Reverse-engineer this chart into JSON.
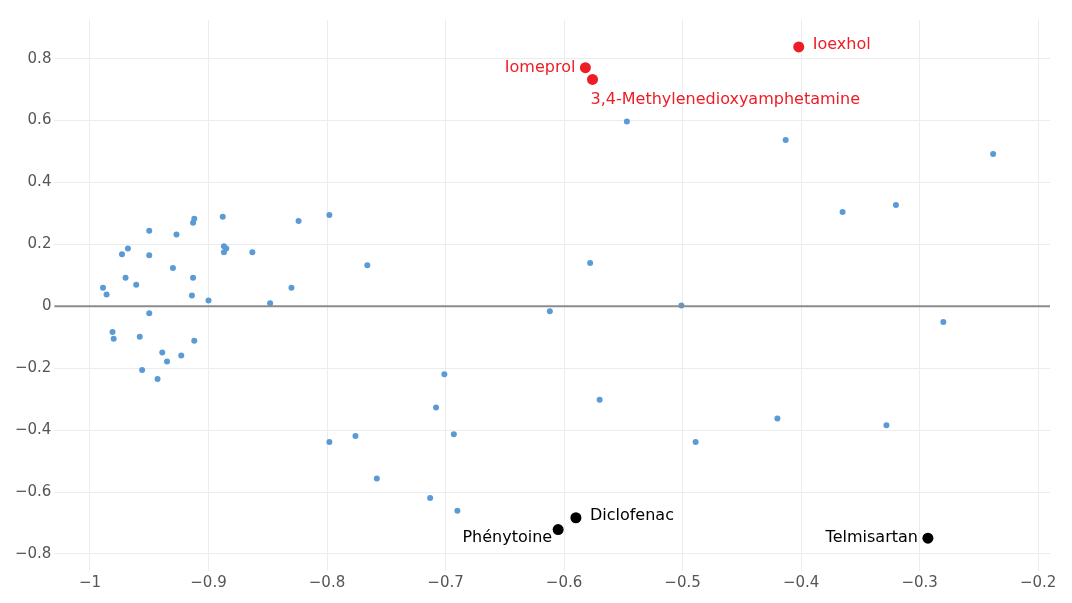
{
  "chart_data": {
    "type": "scatter",
    "xlim": [
      -1.03,
      -0.19
    ],
    "ylim": [
      -0.855,
      0.925
    ],
    "xticks": [
      {
        "value": -1,
        "label": "−1"
      },
      {
        "value": -0.9,
        "label": "−0.9"
      },
      {
        "value": -0.8,
        "label": "−0.8"
      },
      {
        "value": -0.7,
        "label": "−0.7"
      },
      {
        "value": -0.6,
        "label": "−0.6"
      },
      {
        "value": -0.5,
        "label": "−0.5"
      },
      {
        "value": -0.4,
        "label": "−0.4"
      },
      {
        "value": -0.3,
        "label": "−0.3"
      },
      {
        "value": -0.2,
        "label": "−0.2"
      }
    ],
    "yticks": [
      {
        "value": -0.8,
        "label": "−0.8"
      },
      {
        "value": -0.6,
        "label": "−0.6"
      },
      {
        "value": -0.4,
        "label": "−0.4"
      },
      {
        "value": -0.2,
        "label": "−0.2"
      },
      0,
      0.2,
      0.4,
      0.6,
      0.8
    ],
    "grid": true,
    "legend": false,
    "marker": "circle",
    "ref_lines": [
      {
        "axis": "y",
        "value": 0,
        "color": "#8c8c8c"
      }
    ],
    "series": [
      {
        "color": "#5b9bd5",
        "x": [
          -0.547,
          -0.413,
          -0.238,
          -0.365,
          -0.32,
          -0.578,
          -0.612,
          -0.501,
          -0.28,
          -0.57,
          -0.701,
          -0.708,
          -0.693,
          -0.489,
          -0.42,
          -0.328,
          -0.798,
          -0.776,
          -0.758,
          -0.713,
          -0.69,
          -0.989,
          -0.986,
          -0.95,
          -0.973,
          -0.968,
          -0.97,
          -0.961,
          -0.95,
          -0.927,
          -0.93,
          -0.913,
          -0.912,
          -0.913,
          -0.888,
          -0.887,
          -0.885,
          -0.887,
          -0.863,
          -0.824,
          -0.798,
          -0.766,
          -0.914,
          -0.9,
          -0.848,
          -0.83,
          -0.95,
          -0.981,
          -0.98,
          -0.958,
          -0.912,
          -0.939,
          -0.935,
          -0.923,
          -0.956,
          -0.943
        ],
        "values": [
          0.597,
          0.537,
          0.492,
          0.305,
          0.327,
          0.14,
          -0.016,
          0.003,
          -0.051,
          -0.302,
          -0.219,
          -0.327,
          -0.413,
          -0.438,
          -0.362,
          -0.384,
          -0.438,
          -0.419,
          -0.556,
          -0.619,
          -0.66,
          0.06,
          0.038,
          0.244,
          0.168,
          0.187,
          0.092,
          0.07,
          0.165,
          0.232,
          0.124,
          0.092,
          0.283,
          0.27,
          0.289,
          0.194,
          0.187,
          0.175,
          0.175,
          0.276,
          0.295,
          0.133,
          0.035,
          0.019,
          0.01,
          0.06,
          -0.022,
          -0.083,
          -0.105,
          -0.098,
          -0.111,
          -0.149,
          -0.178,
          -0.159,
          -0.206,
          -0.235
        ]
      },
      {
        "color": "#ee1c25",
        "x": [
          -0.582,
          -0.576,
          -0.402
        ],
        "values": [
          0.771,
          0.733,
          0.838
        ]
      },
      {
        "color": "#000000",
        "x": [
          -0.59,
          -0.605,
          -0.293
        ],
        "values": [
          -0.683,
          -0.721,
          -0.749
        ]
      }
    ],
    "annotations": [
      {
        "text": "Iomeprol",
        "x": -0.582,
        "y": 0.771
      },
      {
        "text": "3,4-Methylenedioxyamphetamine",
        "x": -0.576,
        "y": 0.733
      },
      {
        "text": "Ioexhol",
        "x": -0.402,
        "y": 0.838
      },
      {
        "text": "Diclofenac",
        "x": -0.59,
        "y": -0.683
      },
      {
        "text": "Phénytoine",
        "x": -0.605,
        "y": -0.721
      },
      {
        "text": "Telmisartan",
        "x": -0.293,
        "y": -0.749
      }
    ]
  }
}
